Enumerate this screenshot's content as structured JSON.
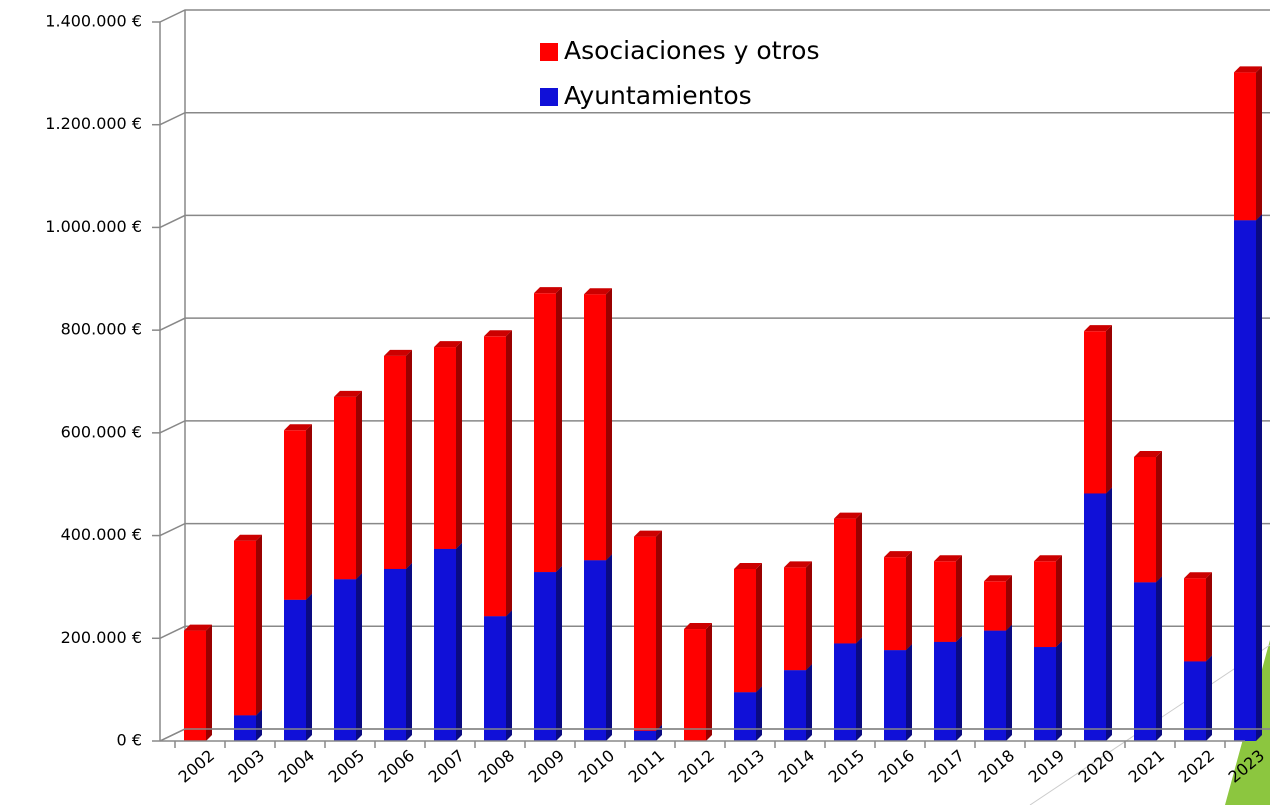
{
  "chart_data": {
    "type": "bar",
    "stacked": true,
    "categories": [
      "2002",
      "2003",
      "2004",
      "2005",
      "2006",
      "2007",
      "2008",
      "2009",
      "2010",
      "2011",
      "2012",
      "2013",
      "2014",
      "2015",
      "2016",
      "2017",
      "2018",
      "2019",
      "2020",
      "2021",
      "2022",
      "2023"
    ],
    "series": [
      {
        "name": "Ayuntamientos",
        "color": "#1010d8",
        "values": [
          0,
          50000,
          275000,
          315000,
          335000,
          374000,
          243000,
          329000,
          352000,
          20000,
          0,
          95000,
          138000,
          190000,
          177000,
          193000,
          215000,
          183000,
          482000,
          309000,
          155000,
          1014000
        ]
      },
      {
        "name": "Asociaciones y otros",
        "color": "#ff0000",
        "values": [
          215000,
          340000,
          330000,
          355000,
          415000,
          393000,
          545000,
          543000,
          518000,
          378000,
          218000,
          240000,
          200000,
          243000,
          181000,
          157000,
          96000,
          167000,
          316000,
          244000,
          162000,
          288000
        ]
      }
    ],
    "ylim": [
      0,
      1400000
    ],
    "yticks": [
      {
        "value": 0,
        "label": "0 €"
      },
      {
        "value": 200000,
        "label": "200.000 €"
      },
      {
        "value": 400000,
        "label": "400.000 €"
      },
      {
        "value": 600000,
        "label": "600.000 €"
      },
      {
        "value": 800000,
        "label": "800.000 €"
      },
      {
        "value": 1000000,
        "label": "1.000.000 €"
      },
      {
        "value": 1200000,
        "label": "1.200.000 €"
      },
      {
        "value": 1400000,
        "label": "1.400.000 €"
      }
    ],
    "grid": true
  }
}
